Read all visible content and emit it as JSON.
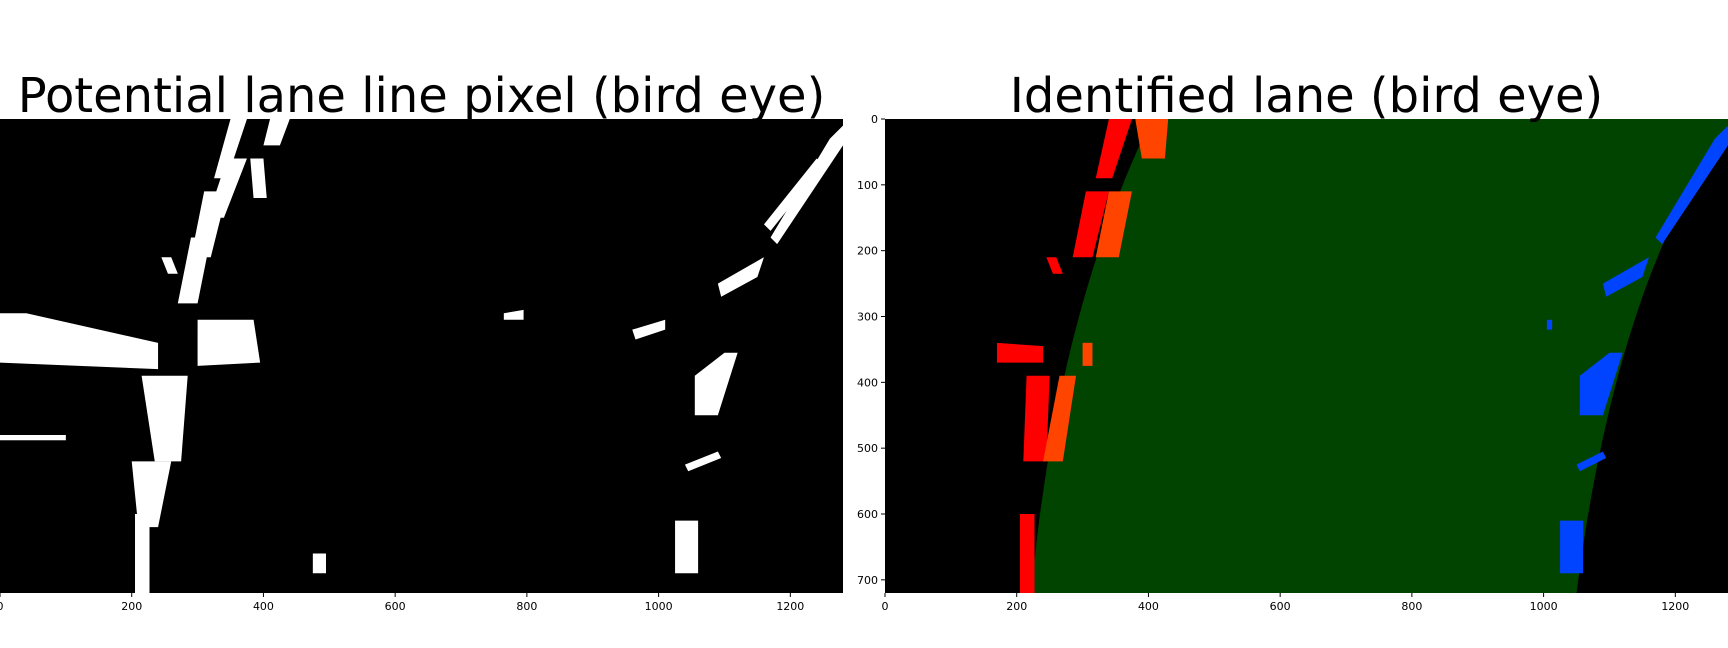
{
  "chart_data": [
    {
      "type": "image",
      "title": "Potential lane line pixel (bird eye)",
      "xlim": [
        0,
        1280
      ],
      "ylim": [
        720,
        0
      ],
      "xticks": [
        0,
        200,
        400,
        600,
        800,
        1000,
        1200
      ]
    },
    {
      "type": "image",
      "title": "Identified lane (bird eye)",
      "xlim": [
        0,
        1280
      ],
      "ylim": [
        720,
        0
      ],
      "xticks": [
        0,
        200,
        400,
        600,
        800,
        1000,
        1200
      ],
      "yticks": [
        0,
        100,
        200,
        300,
        400,
        500,
        600,
        700
      ]
    }
  ]
}
